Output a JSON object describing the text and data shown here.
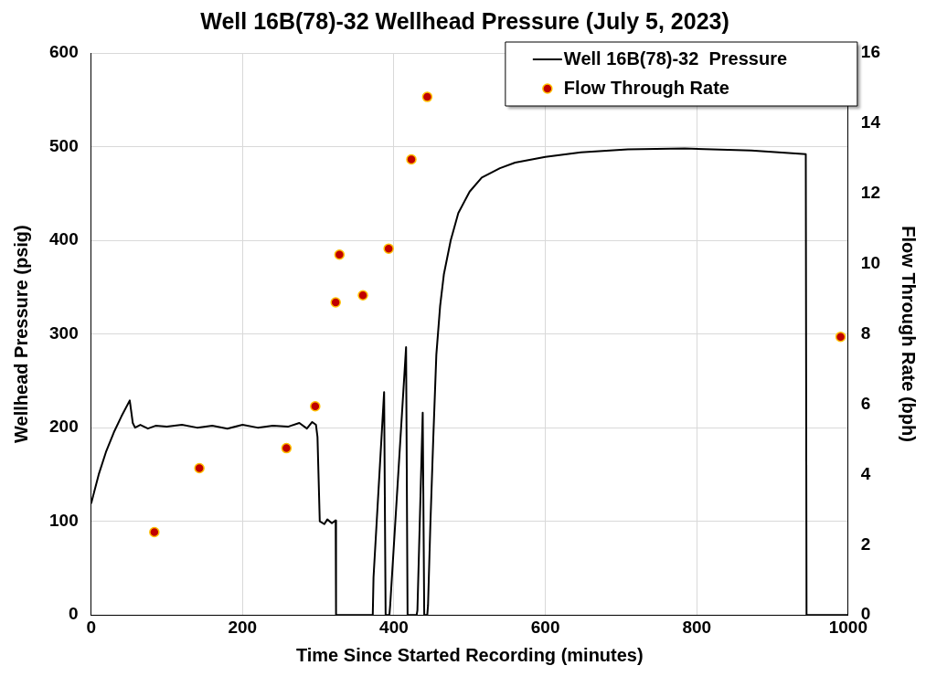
{
  "chart_data": {
    "type": "line",
    "title": "Well 16B(78)-32 Wellhead Pressure (July 5, 2023)",
    "xlabel": "Time Since Started Recording (minutes)",
    "ylabel": "Wellhead Pressure (psig)",
    "y2label": "Flow Through Rate (bph)",
    "xlim": [
      0,
      1000
    ],
    "xticks": [
      0,
      200,
      400,
      600,
      800,
      1000
    ],
    "ylim": [
      0,
      600
    ],
    "yticks": [
      0,
      100,
      200,
      300,
      400,
      500,
      600
    ],
    "y2lim": [
      0,
      16
    ],
    "y2ticks": [
      0,
      2,
      4,
      6,
      8,
      10,
      12,
      14,
      16
    ],
    "grid": true,
    "legend": "top right",
    "series": [
      {
        "name": "Well 16B(78)-32  Pressure",
        "color": "#000000",
        "marker": "none",
        "x": [
          0,
          10,
          20,
          30,
          40,
          51,
          55,
          58,
          65,
          75,
          85,
          100,
          120,
          140,
          160,
          180,
          200,
          220,
          240,
          260,
          275,
          285,
          292,
          297,
          299,
          302,
          308,
          312,
          318,
          323,
          323.5,
          372,
          373,
          387,
          389,
          394,
          395,
          416,
          418,
          430,
          431,
          438,
          440,
          444,
          445,
          448,
          452,
          456,
          461,
          466,
          475,
          485,
          500,
          516,
          540,
          560,
          600,
          647,
          709,
          784,
          872,
          944,
          945,
          1000
        ],
        "values": [
          119,
          150,
          175,
          195,
          212,
          229,
          205,
          200,
          203,
          199,
          202,
          201,
          203,
          200,
          202,
          199,
          203,
          200,
          202,
          201,
          205,
          199,
          206,
          203,
          190,
          100,
          97,
          102,
          98,
          101,
          0,
          0,
          40,
          238,
          0,
          0,
          10,
          286,
          0,
          0,
          5,
          216,
          0,
          0,
          10,
          94,
          190,
          278,
          330,
          364,
          400,
          429,
          452,
          467,
          477,
          483,
          489,
          494,
          497,
          498,
          496,
          492,
          0,
          0
        ]
      },
      {
        "name": "Flow Through Rate",
        "type": "scatter",
        "color": "#c00000",
        "marker": "circle",
        "axis": "y2",
        "x": [
          83.5,
          143,
          258,
          296,
          323,
          328,
          359,
          393,
          423,
          444,
          990
        ],
        "values": [
          2.36,
          4.18,
          4.75,
          5.94,
          8.9,
          10.26,
          9.1,
          10.43,
          12.97,
          14.75,
          7.92
        ]
      }
    ]
  }
}
